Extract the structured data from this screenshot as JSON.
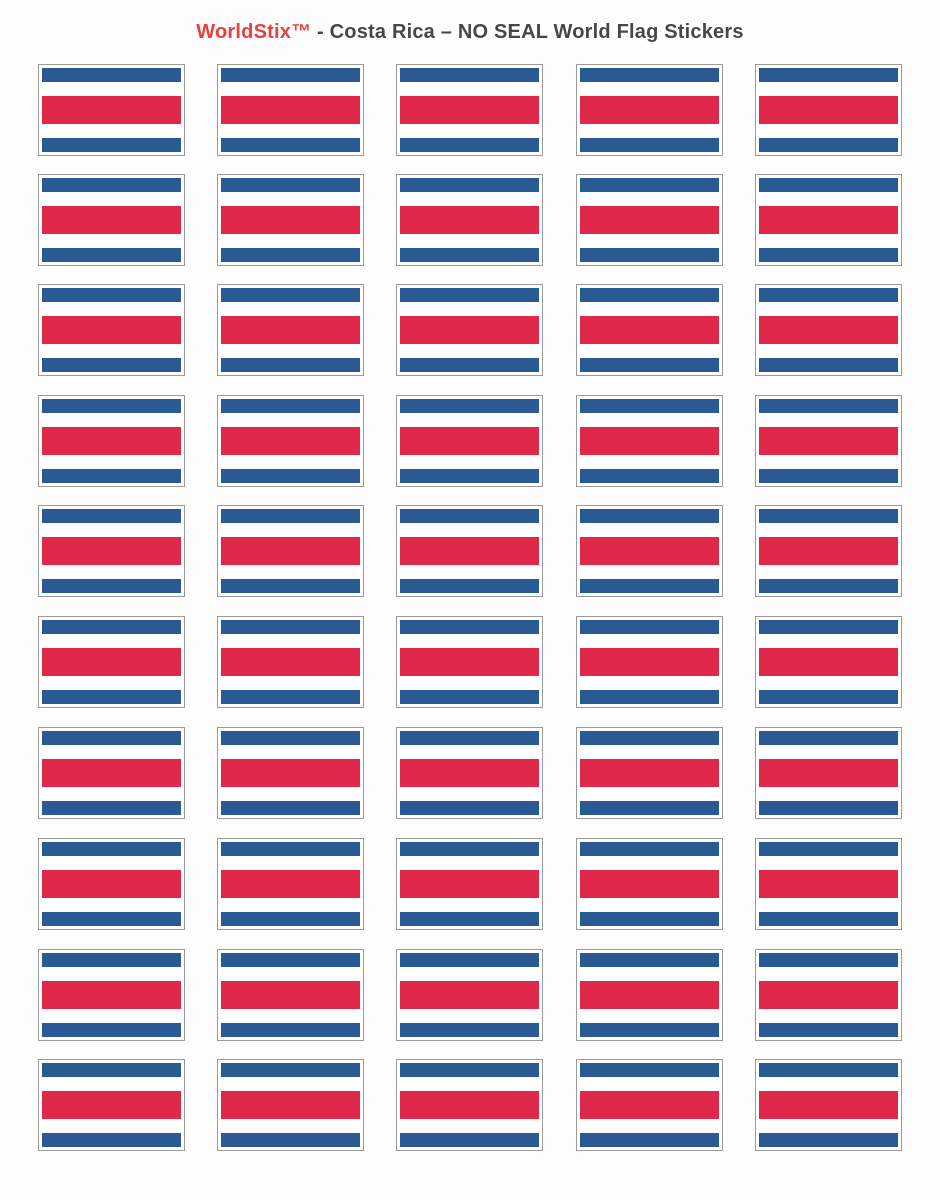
{
  "title": {
    "brand": "WorldStix™",
    "rest": " - Costa Rica – NO SEAL World Flag Stickers"
  },
  "sticker": {
    "country": "Costa Rica",
    "icon": "costa-rica-flag-icon",
    "stripes": [
      "blue",
      "white",
      "red",
      "white",
      "blue"
    ]
  },
  "colors": {
    "brand": "#e8403a",
    "title_text": "#4a4646",
    "blue": "#2a5a94",
    "white": "#ffffff",
    "red": "#e0284a"
  }
}
